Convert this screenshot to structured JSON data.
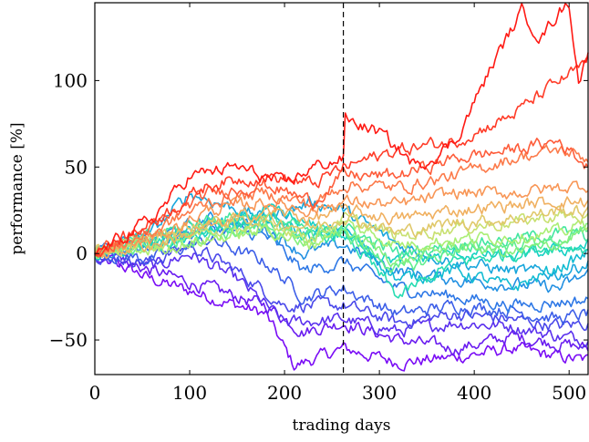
{
  "chart_data": {
    "type": "line",
    "title": "",
    "xlabel": "trading days",
    "ylabel": "performance [%]",
    "xlim": [
      0,
      520
    ],
    "ylim": [
      -70,
      145
    ],
    "xticks": [
      0,
      100,
      200,
      300,
      400,
      500
    ],
    "yticks": [
      -50,
      0,
      50,
      100
    ],
    "ytick_labels": [
      "−50",
      "0",
      "50",
      "100"
    ],
    "grid": false,
    "legend": "none",
    "vertical_marker": {
      "x": 262,
      "style": "dashed"
    },
    "colormap": "rainbow",
    "series": [
      {
        "color": "#7a0cf5",
        "x": [
          0,
          60,
          120,
          180,
          210,
          262,
          320,
          380,
          440,
          490,
          520
        ],
        "values": [
          0,
          -15,
          -25,
          -35,
          -65,
          -55,
          -63,
          -60,
          -55,
          -60,
          -62
        ]
      },
      {
        "color": "#6a1cf0",
        "x": [
          0,
          60,
          120,
          180,
          220,
          262,
          320,
          380,
          440,
          490,
          520
        ],
        "values": [
          0,
          -10,
          -20,
          -30,
          -45,
          -40,
          -50,
          -55,
          -48,
          -52,
          -55
        ]
      },
      {
        "color": "#5a30ee",
        "x": [
          0,
          60,
          100,
          150,
          200,
          262,
          320,
          380,
          440,
          490,
          520
        ],
        "values": [
          0,
          -8,
          0,
          -15,
          -40,
          -38,
          -45,
          -40,
          -42,
          -48,
          -50
        ]
      },
      {
        "color": "#4a48ea",
        "x": [
          0,
          60,
          100,
          150,
          200,
          262,
          320,
          380,
          440,
          490,
          520
        ],
        "values": [
          0,
          -5,
          5,
          -10,
          -30,
          -30,
          -40,
          -35,
          -38,
          -42,
          -40
        ]
      },
      {
        "color": "#3c5ee8",
        "x": [
          0,
          60,
          120,
          180,
          220,
          262,
          320,
          380,
          440,
          490,
          520
        ],
        "values": [
          0,
          -3,
          8,
          -5,
          -25,
          -20,
          -35,
          -30,
          -33,
          -38,
          -35
        ]
      },
      {
        "color": "#2e78e6",
        "x": [
          0,
          60,
          120,
          180,
          220,
          262,
          320,
          380,
          440,
          490,
          520
        ],
        "values": [
          0,
          5,
          15,
          10,
          -10,
          -5,
          -20,
          -25,
          -30,
          -28,
          -27
        ]
      },
      {
        "color": "#2290e2",
        "x": [
          0,
          60,
          120,
          180,
          220,
          262,
          320,
          380,
          440,
          490,
          520
        ],
        "values": [
          0,
          8,
          20,
          15,
          0,
          5,
          -10,
          -15,
          -18,
          -20,
          -12
        ]
      },
      {
        "color": "#18a6dc",
        "x": [
          0,
          60,
          100,
          180,
          230,
          262,
          320,
          380,
          440,
          490,
          520
        ],
        "values": [
          0,
          12,
          35,
          20,
          30,
          25,
          5,
          -5,
          -10,
          -12,
          -5
        ]
      },
      {
        "color": "#12bcd2",
        "x": [
          0,
          60,
          120,
          180,
          230,
          262,
          320,
          380,
          440,
          490,
          520
        ],
        "values": [
          0,
          5,
          18,
          20,
          10,
          15,
          -15,
          -10,
          -20,
          -8,
          0
        ]
      },
      {
        "color": "#16d0c4",
        "x": [
          0,
          60,
          120,
          180,
          230,
          262,
          320,
          380,
          440,
          490,
          520
        ],
        "values": [
          0,
          3,
          12,
          25,
          15,
          10,
          -5,
          0,
          -2,
          2,
          5
        ]
      },
      {
        "color": "#28dcb2",
        "x": [
          0,
          60,
          120,
          180,
          230,
          262,
          320,
          380,
          440,
          490,
          520
        ],
        "values": [
          0,
          6,
          14,
          18,
          8,
          12,
          -25,
          -5,
          0,
          5,
          3
        ]
      },
      {
        "color": "#42e6a0",
        "x": [
          0,
          60,
          120,
          180,
          230,
          262,
          320,
          380,
          440,
          490,
          520
        ],
        "values": [
          0,
          10,
          20,
          22,
          12,
          15,
          0,
          5,
          8,
          12,
          10
        ]
      },
      {
        "color": "#62ee8e",
        "x": [
          0,
          60,
          120,
          180,
          230,
          262,
          320,
          380,
          440,
          490,
          520
        ],
        "values": [
          0,
          4,
          10,
          15,
          10,
          12,
          -10,
          2,
          5,
          8,
          12
        ]
      },
      {
        "color": "#86f07e",
        "x": [
          0,
          60,
          120,
          180,
          230,
          262,
          320,
          380,
          440,
          490,
          520
        ],
        "values": [
          0,
          8,
          15,
          12,
          8,
          14,
          -5,
          5,
          0,
          6,
          15
        ]
      },
      {
        "color": "#aaee74",
        "x": [
          0,
          60,
          120,
          180,
          230,
          262,
          320,
          380,
          440,
          490,
          520
        ],
        "values": [
          0,
          2,
          8,
          14,
          5,
          18,
          5,
          8,
          10,
          12,
          18
        ]
      },
      {
        "color": "#c8e070",
        "x": [
          0,
          60,
          120,
          180,
          230,
          262,
          320,
          380,
          440,
          490,
          520
        ],
        "values": [
          0,
          6,
          12,
          18,
          10,
          20,
          10,
          15,
          18,
          22,
          20
        ]
      },
      {
        "color": "#e0c86a",
        "x": [
          0,
          60,
          120,
          180,
          230,
          262,
          320,
          380,
          440,
          490,
          520
        ],
        "values": [
          0,
          10,
          18,
          20,
          15,
          22,
          12,
          18,
          20,
          25,
          24
        ]
      },
      {
        "color": "#f0b060",
        "x": [
          0,
          60,
          120,
          180,
          230,
          262,
          320,
          380,
          440,
          490,
          520
        ],
        "values": [
          0,
          5,
          15,
          25,
          20,
          25,
          20,
          25,
          28,
          30,
          30
        ]
      },
      {
        "color": "#f89656",
        "x": [
          0,
          60,
          120,
          180,
          230,
          262,
          320,
          380,
          440,
          490,
          520
        ],
        "values": [
          0,
          8,
          25,
          30,
          25,
          30,
          28,
          35,
          35,
          38,
          40
        ]
      },
      {
        "color": "#fc7a4a",
        "x": [
          0,
          60,
          120,
          180,
          230,
          262,
          320,
          380,
          440,
          490,
          520
        ],
        "values": [
          0,
          12,
          30,
          35,
          28,
          40,
          38,
          45,
          55,
          60,
          55
        ]
      },
      {
        "color": "#fe5c3a",
        "x": [
          0,
          60,
          120,
          180,
          230,
          262,
          320,
          380,
          440,
          490,
          520
        ],
        "values": [
          0,
          15,
          35,
          40,
          30,
          45,
          45,
          55,
          60,
          65,
          50
        ]
      },
      {
        "color": "#ff3c28",
        "x": [
          0,
          60,
          120,
          180,
          230,
          262,
          320,
          380,
          440,
          490,
          520
        ],
        "values": [
          0,
          18,
          40,
          45,
          40,
          50,
          60,
          65,
          80,
          100,
          110
        ]
      },
      {
        "color": "#ff1a14",
        "x": [
          0,
          60,
          100,
          150,
          200,
          230,
          262,
          263,
          300,
          340,
          380,
          420,
          450,
          470,
          490,
          500,
          510,
          520
        ],
        "values": [
          0,
          20,
          45,
          50,
          40,
          50,
          55,
          78,
          70,
          50,
          65,
          110,
          140,
          125,
          140,
          145,
          100,
          115
        ]
      }
    ]
  }
}
